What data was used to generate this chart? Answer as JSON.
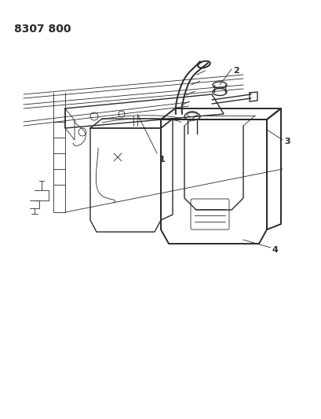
{
  "title": "8307 800",
  "bg_color": "#ffffff",
  "line_color": "#2a2a2a",
  "lw_main": 1.0,
  "lw_thin": 0.6,
  "lw_thick": 1.4,
  "title_fontsize": 10,
  "label_fontsize": 8
}
